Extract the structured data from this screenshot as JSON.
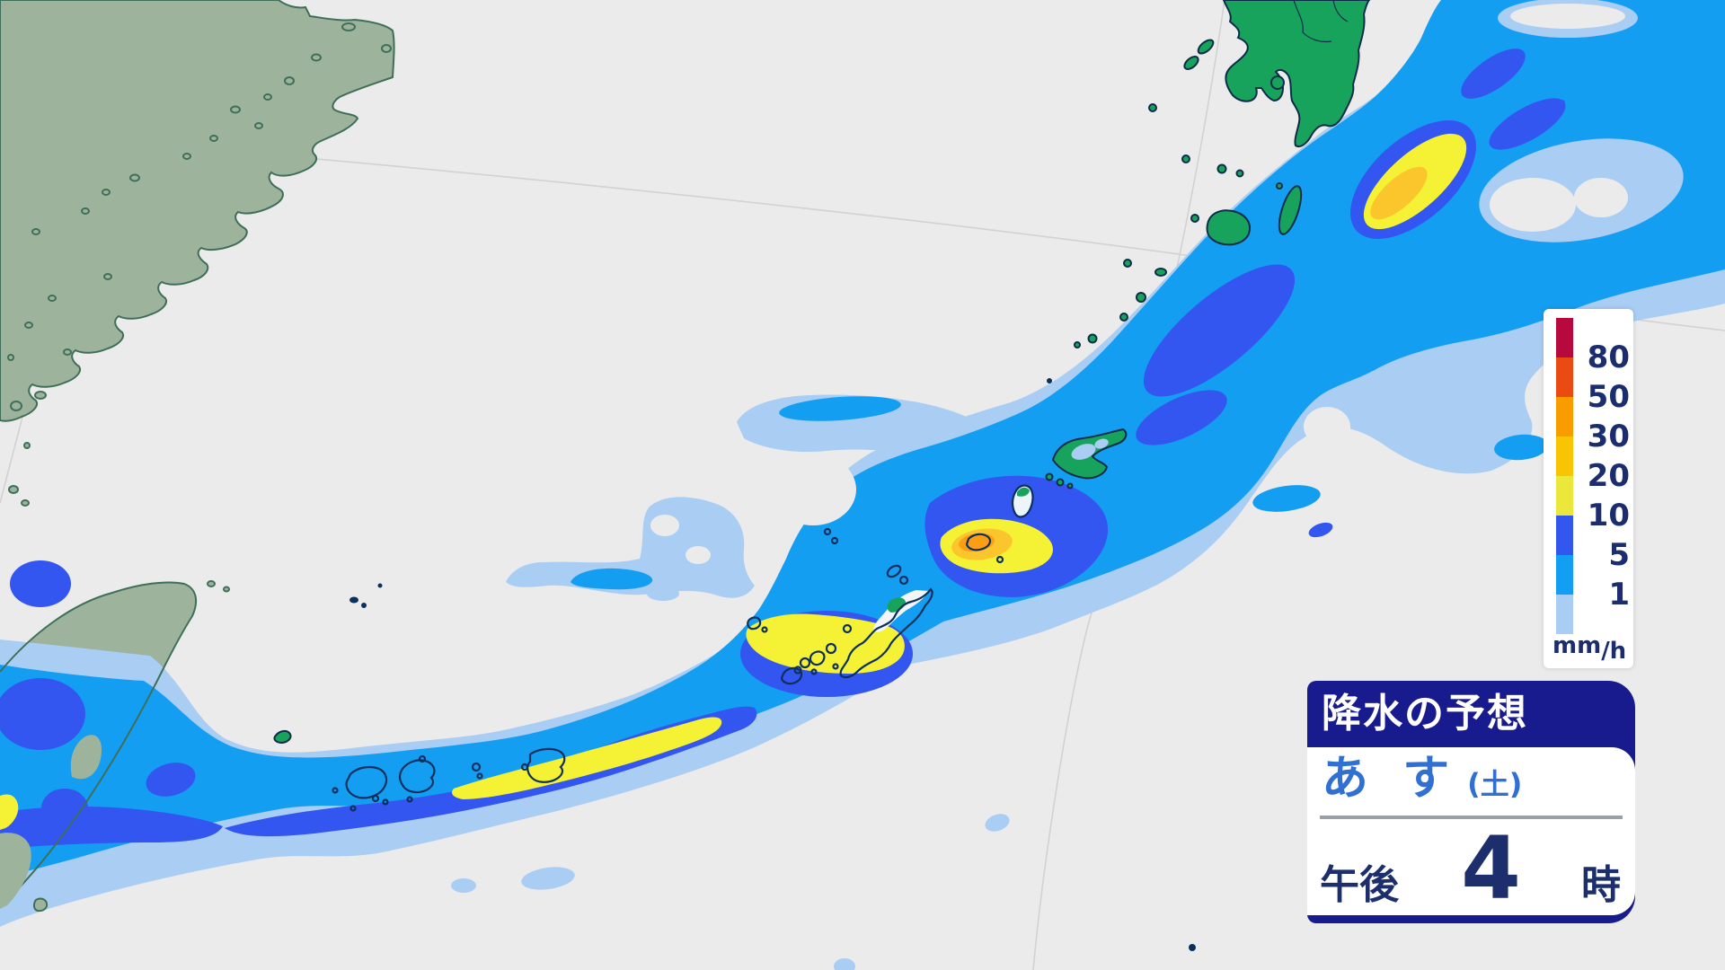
{
  "map": {
    "sea_color": "#ebebeb",
    "graticule_color": "#d2d2d2",
    "land_colors": {
      "china_fill": "#9db39c",
      "china_stroke": "#3f6f58",
      "japan_fill": "#17a35c",
      "japan_stroke": "#0c2c49",
      "island_outline": "#0d2f5e"
    },
    "precip_colors": {
      "under1": "#a9cdf3",
      "r1": "#149ef2",
      "r5": "#3355f0",
      "r10": "#f5f135",
      "r20": "#fbc62c",
      "r30": "#fb9d15"
    }
  },
  "legend": {
    "unit_main": "mm",
    "unit_sub": "/h",
    "thresholds": [
      "80",
      "50",
      "30",
      "20",
      "10",
      "5",
      "1"
    ],
    "swatch_colors": [
      "#b8093e",
      "#e94b12",
      "#f89c00",
      "#f9c403",
      "#ebe83b",
      "#3356ef",
      "#129ef3",
      "#a9cdf3"
    ]
  },
  "info_box": {
    "title": "降水の予想",
    "day": "あ す",
    "day_note": "(土)",
    "period": "午後",
    "hour": "4",
    "hour_unit": "時",
    "colors": {
      "box_bg": "#181b8e",
      "title": "#ffffff",
      "day": "#2f70d2",
      "time": "#1d2e6d",
      "divider": "#9aa0a6"
    }
  }
}
